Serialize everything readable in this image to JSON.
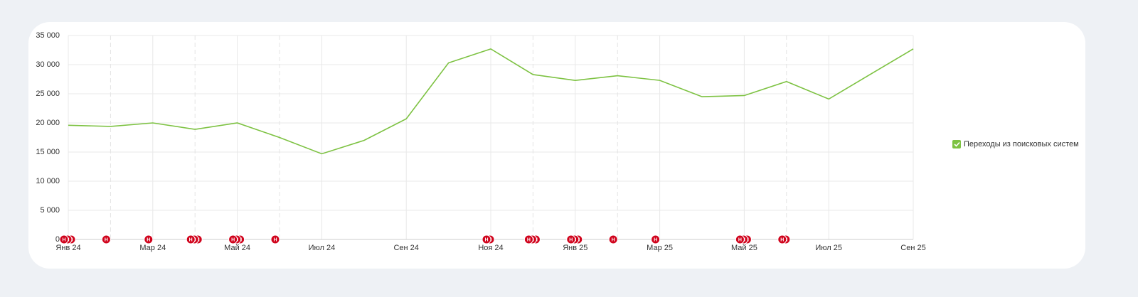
{
  "chart_data": {
    "type": "line",
    "categories": [
      "Янв 24",
      null,
      "Мар 24",
      null,
      "Май 24",
      null,
      "Июл 24",
      null,
      "Сен 24",
      null,
      "Ноя 24",
      null,
      "Янв 25",
      null,
      "Мар 25",
      null,
      "Май 25",
      null,
      "Июл 25",
      null,
      "Сен 25"
    ],
    "series": [
      {
        "name": "Переходы из поисковых систем",
        "color": "#7dc242",
        "values": [
          19600,
          19400,
          20000,
          18900,
          20000,
          17500,
          14700,
          17000,
          20700,
          30300,
          32700,
          28300,
          27300,
          28100,
          27300,
          24500,
          24700,
          27100,
          24100,
          28400,
          32700
        ]
      }
    ],
    "annotations": [
      [
        "Н",
        "Н",
        "Н"
      ],
      [
        "Н"
      ],
      [
        "Н"
      ],
      [
        "Н",
        "Н",
        "Н"
      ],
      [
        "Н",
        "Н",
        "Н"
      ],
      [
        "Н"
      ],
      [],
      [],
      [],
      [],
      [
        "Н",
        "Н"
      ],
      [
        "Н",
        "Н",
        "Н"
      ],
      [
        "Н",
        "Н",
        "Н"
      ],
      [
        "Н"
      ],
      [
        "Н"
      ],
      [],
      [
        "Н",
        "Н",
        "Н"
      ],
      [
        "Н",
        "Н"
      ],
      [],
      [],
      []
    ],
    "ylim": [
      0,
      35000
    ],
    "yticks": [
      0,
      {
        "value": 5000,
        "label": "5 000"
      },
      {
        "value": 10000,
        "label": "10 000"
      },
      {
        "value": 15000,
        "label": "15 000"
      },
      {
        "value": 20000,
        "label": "20 000"
      },
      {
        "value": 25000,
        "label": "25 000"
      },
      {
        "value": 30000,
        "label": "30 000"
      },
      {
        "value": 35000,
        "label": "35 000"
      }
    ],
    "grid": true,
    "legend": "right"
  }
}
